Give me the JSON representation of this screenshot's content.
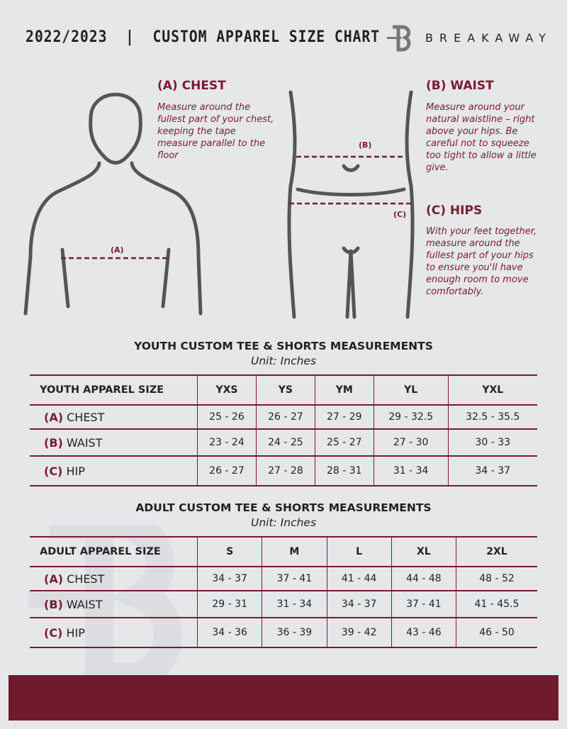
{
  "header": {
    "title": "2022/2023  |  CUSTOM APPAREL SIZE CHART",
    "brand": "BREAKAWAY"
  },
  "guide": {
    "chest": {
      "heading": "(A) CHEST",
      "label": "(A)",
      "text": "Measure around the fullest part of your chest, keeping the tape measure parallel to the floor"
    },
    "waist": {
      "heading": "(B) WAIST",
      "label": "(B)",
      "text": "Measure around your natural waistline – right above your hips. Be careful not to squeeze too tight to allow a little give."
    },
    "hips": {
      "heading": "(C) HIPS",
      "label": "(C)",
      "text": "With your feet together, measure around the fullest part of your hips to ensure you'll have enough room to move comfortably."
    }
  },
  "youth": {
    "title": "YOUTH CUSTOM TEE & SHORTS MEASUREMENTS",
    "unit": "Unit: Inches",
    "header": "YOUTH APPAREL SIZE",
    "sizes": [
      "YXS",
      "YS",
      "YM",
      "YL",
      "YXL"
    ],
    "rows": [
      {
        "letter": "(A)",
        "name": "CHEST",
        "values": [
          "25 - 26",
          "26 - 27",
          "27 - 29",
          "29 - 32.5",
          "32.5 - 35.5"
        ]
      },
      {
        "letter": "(B)",
        "name": "WAIST",
        "values": [
          "23 - 24",
          "24 - 25",
          "25 - 27",
          "27 - 30",
          "30 - 33"
        ]
      },
      {
        "letter": "(C)",
        "name": "HIP",
        "values": [
          "26 - 27",
          "27 - 28",
          "28 - 31",
          "31 - 34",
          "34 - 37"
        ]
      }
    ]
  },
  "adult": {
    "title": "ADULT CUSTOM TEE & SHORTS MEASUREMENTS",
    "unit": "Unit: Inches",
    "header": "ADULT APPAREL SIZE",
    "sizes": [
      "S",
      "M",
      "L",
      "XL",
      "2XL"
    ],
    "rows": [
      {
        "letter": "(A)",
        "name": "CHEST",
        "values": [
          "34 - 37",
          "37 - 41",
          "41 - 44",
          "44 - 48",
          "48 - 52"
        ]
      },
      {
        "letter": "(B)",
        "name": "WAIST",
        "values": [
          "29 - 31",
          "31 - 34",
          "34 - 37",
          "37 - 41",
          "41 - 45.5"
        ]
      },
      {
        "letter": "(C)",
        "name": "HIP",
        "values": [
          "34 - 36",
          "36 - 39",
          "39 - 42",
          "43 - 46",
          "46 - 50"
        ]
      }
    ]
  },
  "colors": {
    "accent": "#7a1a30",
    "footer": "#701a2e",
    "background": "#e6e7e9"
  }
}
